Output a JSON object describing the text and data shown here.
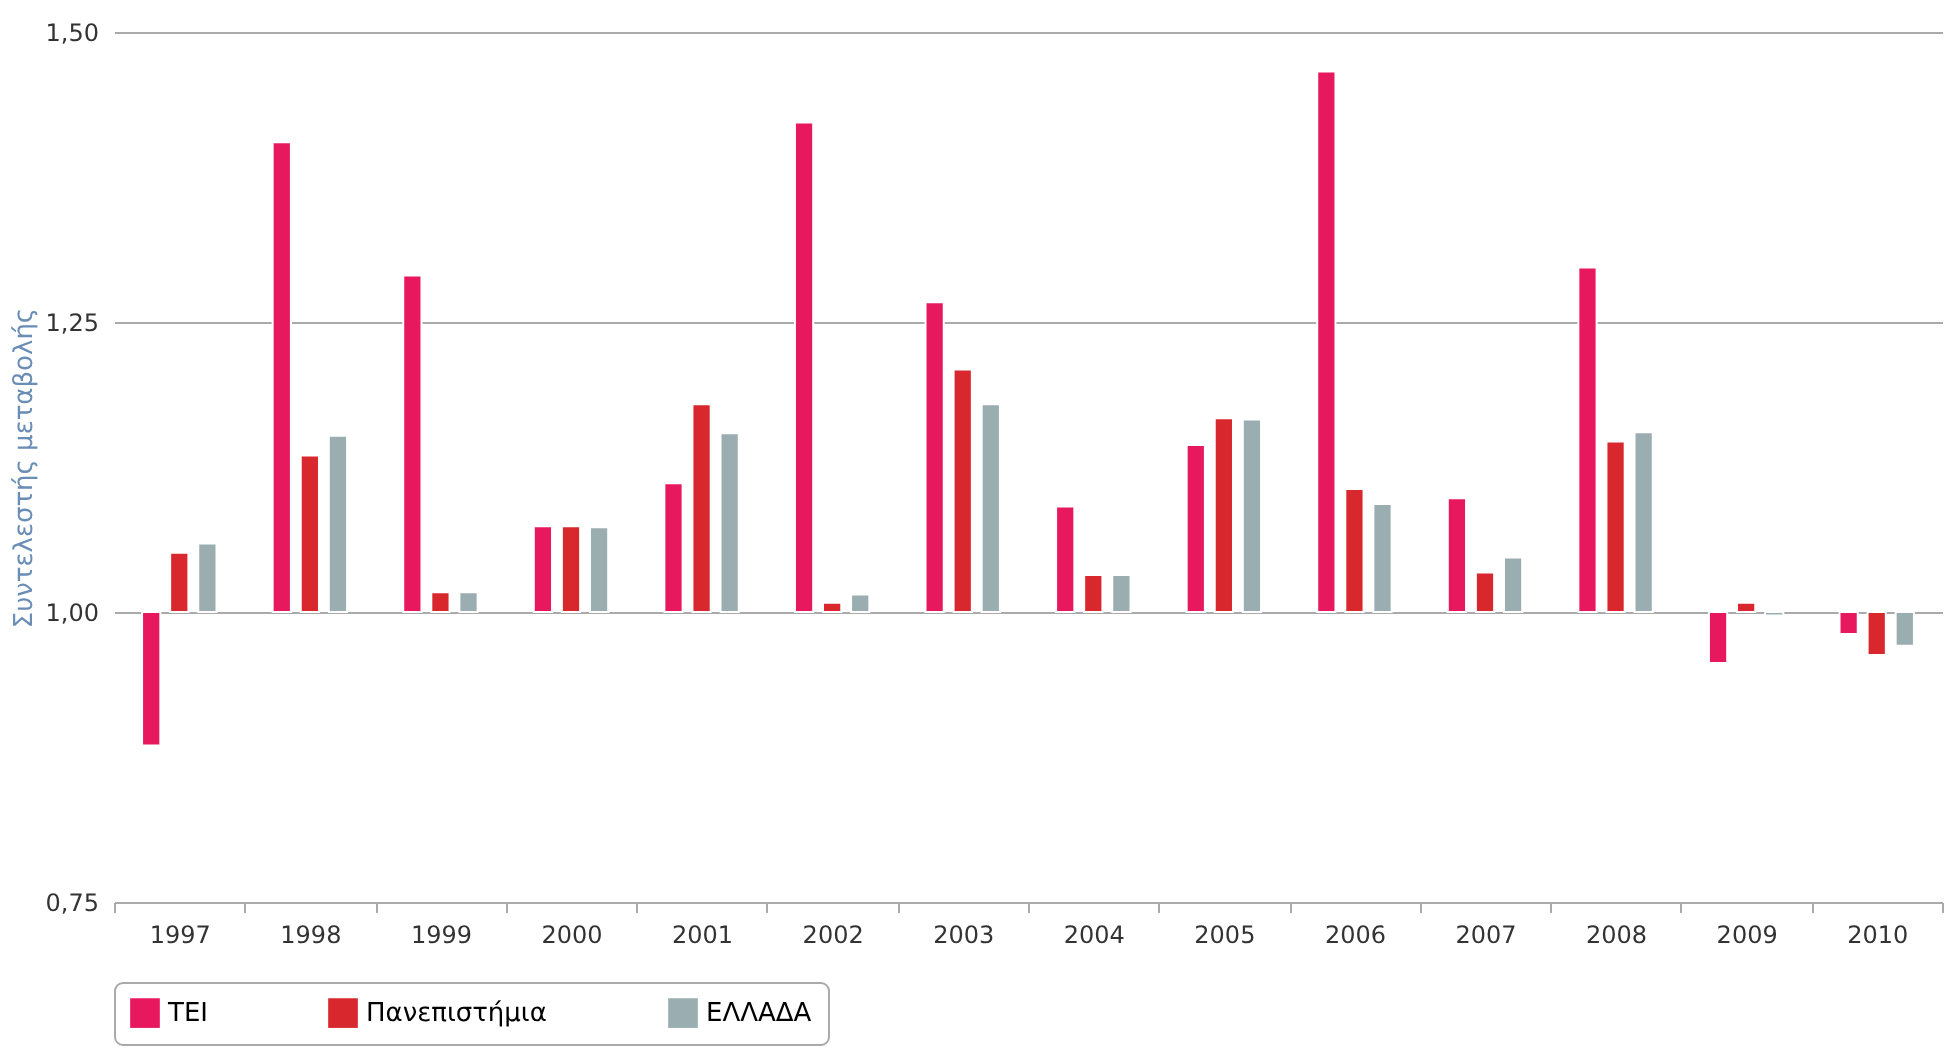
{
  "chart_data": {
    "type": "bar",
    "ylabel": "Συντελεστής μεταβολής",
    "categories": [
      "1997",
      "1998",
      "1999",
      "2000",
      "2001",
      "2002",
      "2003",
      "2004",
      "2005",
      "2006",
      "2007",
      "2008",
      "2009",
      "2010"
    ],
    "series": [
      {
        "name": "ΤΕΙ",
        "color": "#e8185e",
        "base": [
          1,
          1,
          1,
          1,
          1,
          1,
          1,
          1,
          1,
          1,
          1,
          1,
          1,
          1
        ],
        "values": [
          -0.115,
          0.405,
          0.29,
          0.074,
          0.111,
          0.422,
          0.267,
          0.091,
          0.144,
          0.466,
          0.098,
          0.297,
          -0.044,
          -0.019
        ]
      },
      {
        "name": "Πανεπιστήμια",
        "color": "#d9272e",
        "base": [
          1,
          1,
          1,
          1,
          1,
          1,
          1,
          1,
          1,
          1,
          1,
          1,
          1,
          1
        ],
        "values": [
          0.051,
          0.135,
          0.017,
          0.074,
          0.179,
          0.008,
          0.209,
          0.032,
          0.167,
          0.106,
          0.034,
          0.147,
          0.008,
          -0.037
        ]
      },
      {
        "name": "ΕΛΛΑΔΑ",
        "color": "#9aadb0",
        "base": [
          1,
          1,
          1,
          1,
          1,
          1,
          1,
          1,
          1,
          1,
          1,
          1,
          1,
          1
        ],
        "values": [
          0.059,
          0.152,
          0.017,
          0.073,
          0.154,
          0.015,
          0.179,
          0.032,
          0.166,
          0.093,
          0.047,
          0.155,
          -0.003,
          -0.029
        ]
      }
    ],
    "ylim": [
      0.75,
      1.5
    ],
    "yticks": [
      {
        "value": 0.75,
        "label": "0,75"
      },
      {
        "value": 1.0,
        "label": "1,00"
      },
      {
        "value": 1.25,
        "label": "1,25"
      },
      {
        "value": 1.5,
        "label": "1,50"
      }
    ],
    "grid": "y",
    "legend": "bottom"
  }
}
